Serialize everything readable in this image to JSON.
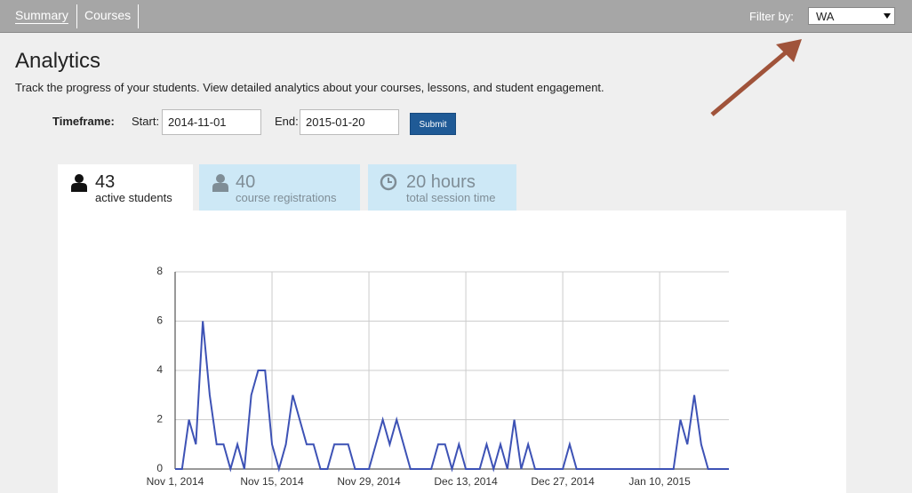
{
  "nav": {
    "tabs": [
      "Summary",
      "Courses"
    ],
    "filter_label": "Filter by:",
    "filter_value": "WA"
  },
  "header": {
    "title": "Analytics",
    "subtitle": "Track the progress of your students. View detailed analytics about your courses, lessons, and student engagement."
  },
  "timeframe": {
    "label": "Timeframe:",
    "start_label": "Start:",
    "start": "2014-11-01",
    "end_label": "End:",
    "end": "2015-01-20",
    "submit": "Submit"
  },
  "stats": [
    {
      "value": 43,
      "label": "active students"
    },
    {
      "value": 40,
      "label": "course registrations"
    },
    {
      "value": "20 hours",
      "label": "total session time"
    }
  ],
  "chart_data": {
    "type": "line",
    "color": "#3d52b5",
    "categories": [
      "Nov 1, 2014",
      null,
      null,
      null,
      null,
      null,
      null,
      null,
      null,
      null,
      null,
      null,
      null,
      null,
      "Nov 15, 2014",
      null,
      null,
      null,
      null,
      null,
      null,
      null,
      null,
      null,
      null,
      null,
      null,
      null,
      "Nov 29, 2014",
      null,
      null,
      null,
      null,
      null,
      null,
      null,
      null,
      null,
      null,
      null,
      null,
      null,
      "Dec 13, 2014",
      null,
      null,
      null,
      null,
      null,
      null,
      null,
      null,
      null,
      null,
      null,
      null,
      null,
      "Dec 27, 2014",
      null,
      null,
      null,
      null,
      null,
      null,
      null,
      null,
      null,
      null,
      null,
      null,
      null,
      "Jan 10, 2015",
      null,
      null,
      null,
      null,
      null,
      null,
      null,
      null,
      null,
      null
    ],
    "values": [
      0,
      0,
      2,
      1,
      6,
      3,
      1,
      1,
      0,
      1,
      0,
      3,
      4,
      4,
      1,
      0,
      1,
      3,
      2,
      1,
      1,
      0,
      0,
      1,
      1,
      1,
      0,
      0,
      0,
      1,
      2,
      1,
      2,
      1,
      0,
      0,
      0,
      0,
      1,
      1,
      0,
      1,
      0,
      0,
      0,
      1,
      0,
      1,
      0,
      2,
      0,
      1,
      0,
      0,
      0,
      0,
      0,
      1,
      0,
      0,
      0,
      0,
      0,
      0,
      0,
      0,
      0,
      0,
      0,
      0,
      0,
      0,
      0,
      2,
      1,
      3,
      1,
      0,
      0,
      0,
      0
    ],
    "ylim": [
      0,
      8
    ],
    "yticks": [
      0,
      2,
      4,
      6,
      8
    ],
    "grid": true
  }
}
